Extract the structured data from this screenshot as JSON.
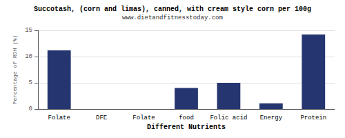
{
  "chart_data": {
    "type": "bar",
    "title": "Succotash, (corn and limas), canned, with cream style corn per 100g",
    "subtitle": "www.dietandfitnesstoday.com",
    "xlabel": "Different Nutrients",
    "ylabel": "Percentage of RDH (%)",
    "categories": [
      "Folate",
      "DFE",
      "Folate",
      "food",
      "Folic acid",
      "Energy",
      "Protein"
    ],
    "values": [
      11.2,
      0.0,
      0.0,
      4.0,
      5.0,
      1.1,
      14.2
    ],
    "color": "#253570",
    "ylim": [
      0,
      15
    ],
    "yticks": [
      0,
      5,
      10,
      15
    ],
    "grid": true
  }
}
